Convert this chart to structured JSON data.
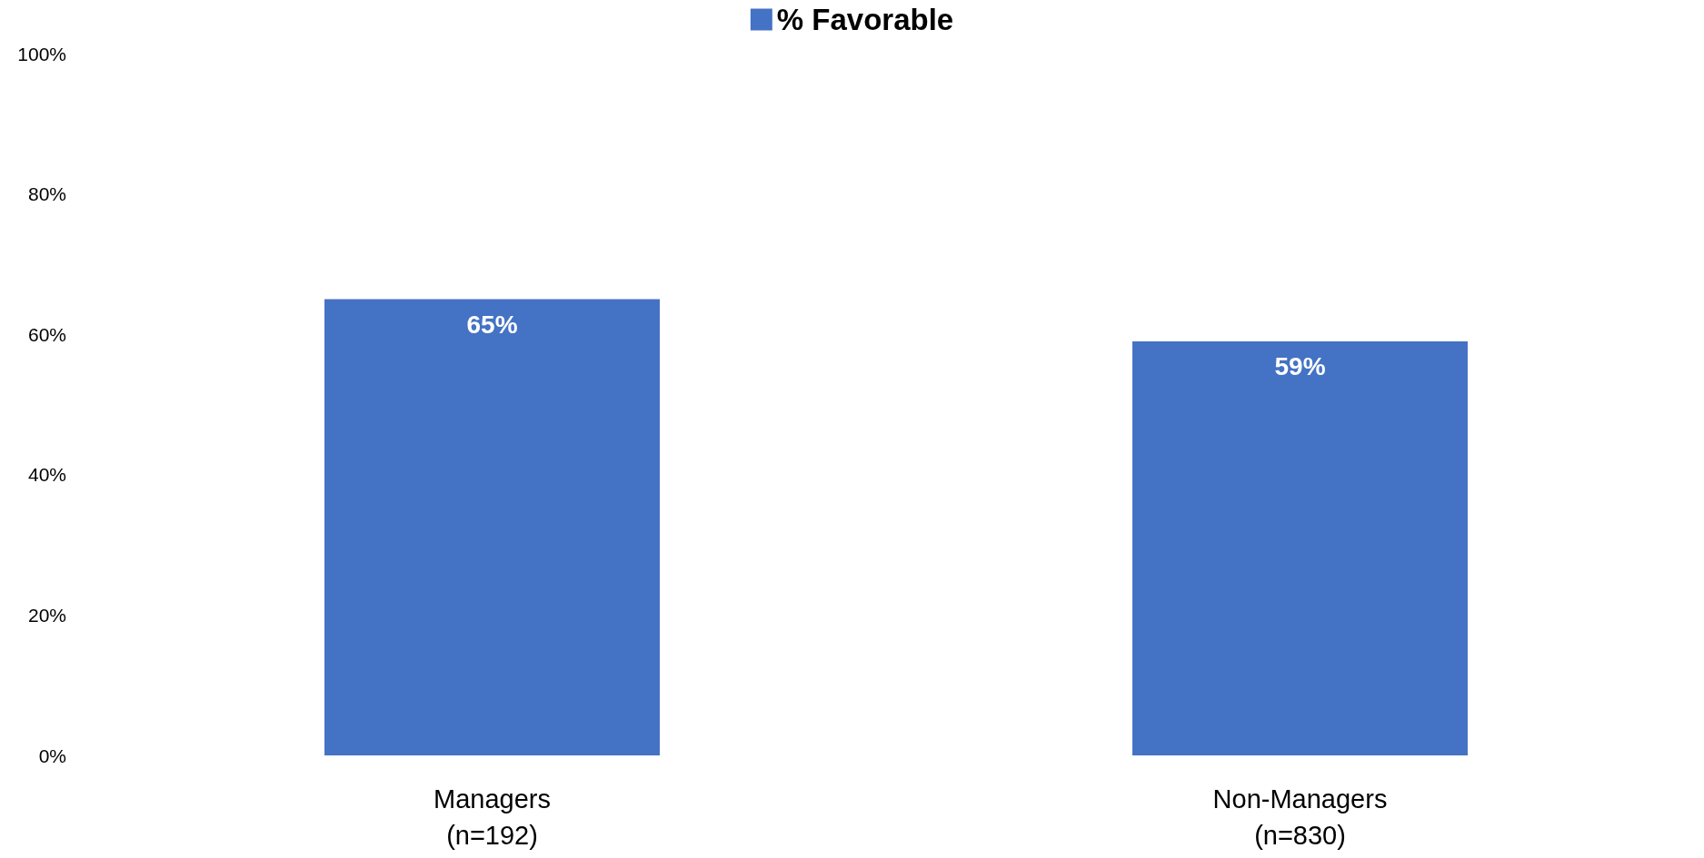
{
  "chart_data": {
    "type": "bar",
    "categories": [
      "Managers\n(n=192)",
      "Non-Managers\n(n=830)"
    ],
    "series": [
      {
        "name": "% Favorable",
        "color": "#4472c4",
        "values": [
          65,
          59
        ],
        "value_labels": [
          "65%",
          "59%"
        ]
      }
    ],
    "ylim": [
      0,
      100
    ],
    "yticks": [
      {
        "value": 0,
        "label": "0%"
      },
      {
        "value": 20,
        "label": "20%"
      },
      {
        "value": 40,
        "label": "40%"
      },
      {
        "value": 60,
        "label": "60%"
      },
      {
        "value": 80,
        "label": "80%"
      },
      {
        "value": 100,
        "label": "100%"
      }
    ],
    "grid": false,
    "legend": "top"
  }
}
